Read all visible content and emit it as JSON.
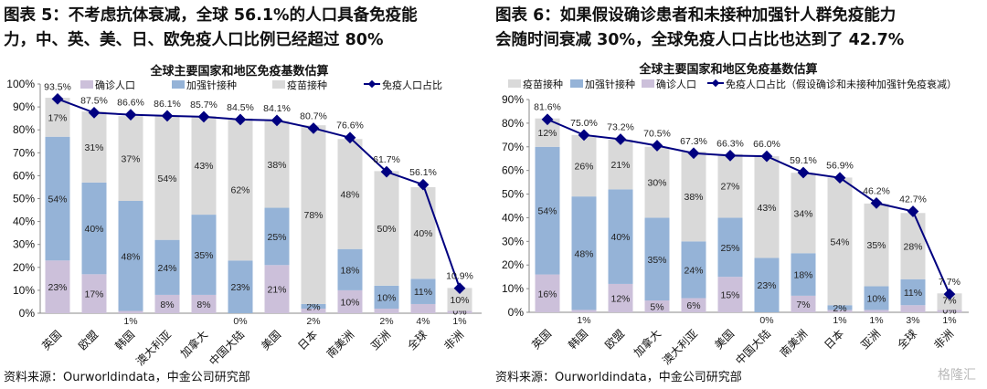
{
  "left": {
    "heading_line1": "图表 5：不考虑抗体衰减，全球 56.1%的人口具备免疫能",
    "heading_line2": "力，中、英、美、日、欧免疫人口比例已经超过 80%",
    "source": "资料来源：Ourworldindata，中金公司研究部"
  },
  "right": {
    "heading_line1": "图表 6：如果假设确诊患者和未接种加强针人群免疫能力",
    "heading_line2": "会随时间衰减 30%，全球免疫人口占比也达到了 42.7%",
    "source": "资料来源：Ourworldindata，中金公司研究部"
  },
  "watermark": "格隆汇",
  "chart_data": [
    {
      "type": "bar",
      "stacked": true,
      "title": "全球主要国家和地区免疫基数估算",
      "ylim": [
        0,
        100
      ],
      "yticks": [
        "0%",
        "10%",
        "20%",
        "30%",
        "40%",
        "50%",
        "60%",
        "70%",
        "80%",
        "90%",
        "100%"
      ],
      "legend_position": "top",
      "categories": [
        "英国",
        "欧盟",
        "韩国",
        "澳大利亚",
        "加拿大",
        "中国大陆",
        "美国",
        "日本",
        "南美洲",
        "亚洲",
        "全球",
        "非洲"
      ],
      "legend_order": [
        "确诊人口",
        "加强针接种",
        "疫苗接种",
        "免疫人口占比"
      ],
      "series": [
        {
          "name": "确诊人口",
          "kind": "bar",
          "color": "#ccc0da",
          "values": [
            23,
            17,
            1,
            8,
            8,
            0,
            21,
            2,
            10,
            2,
            4,
            1
          ]
        },
        {
          "name": "加强针接种",
          "kind": "bar",
          "color": "#95b3d7",
          "values": [
            54,
            40,
            48,
            24,
            35,
            23,
            25,
            2,
            18,
            10,
            11,
            0
          ]
        },
        {
          "name": "疫苗接种",
          "kind": "bar",
          "color": "#d9d9d9",
          "values": [
            17,
            31,
            37,
            54,
            43,
            62,
            38,
            78,
            48,
            50,
            40,
            10
          ]
        },
        {
          "name": "免疫人口占比",
          "kind": "line",
          "color": "#000080",
          "values": [
            93.5,
            87.5,
            86.6,
            86.1,
            85.7,
            84.5,
            84.1,
            80.7,
            76.6,
            61.7,
            56.1,
            10.9
          ]
        }
      ]
    },
    {
      "type": "bar",
      "stacked": true,
      "title": "全球主要国家和地区免疫基数估算",
      "ylim": [
        0,
        90
      ],
      "yticks": [
        "0%",
        "10%",
        "20%",
        "30%",
        "40%",
        "50%",
        "60%",
        "70%",
        "80%",
        "90%"
      ],
      "legend_position": "top",
      "categories": [
        "英国",
        "韩国",
        "欧盟",
        "加拿大",
        "澳大利亚",
        "美国",
        "中国大陆",
        "南美洲",
        "日本",
        "亚洲",
        "全球",
        "非洲"
      ],
      "legend_order": [
        "疫苗接种",
        "加强针接种",
        "确诊人口",
        "免疫人口占比（假设确诊和未接种加强针免疫衰减）"
      ],
      "series": [
        {
          "name": "确诊人口",
          "kind": "bar",
          "color": "#ccc0da",
          "values": [
            16,
            1,
            12,
            5,
            6,
            15,
            0,
            7,
            1,
            1,
            3,
            1
          ]
        },
        {
          "name": "加强针接种",
          "kind": "bar",
          "color": "#95b3d7",
          "values": [
            54,
            48,
            40,
            35,
            24,
            25,
            23,
            18,
            2,
            10,
            11,
            0
          ]
        },
        {
          "name": "疫苗接种",
          "kind": "bar",
          "color": "#d9d9d9",
          "values": [
            12,
            26,
            21,
            30,
            38,
            27,
            43,
            34,
            54,
            35,
            28,
            7
          ]
        },
        {
          "name": "免疫人口占比（假设确诊和未接种加强针免疫衰减）",
          "kind": "line",
          "color": "#000080",
          "values": [
            81.6,
            75.0,
            73.2,
            70.5,
            67.3,
            66.3,
            66.0,
            59.1,
            56.9,
            46.2,
            42.7,
            7.7
          ]
        }
      ]
    }
  ]
}
